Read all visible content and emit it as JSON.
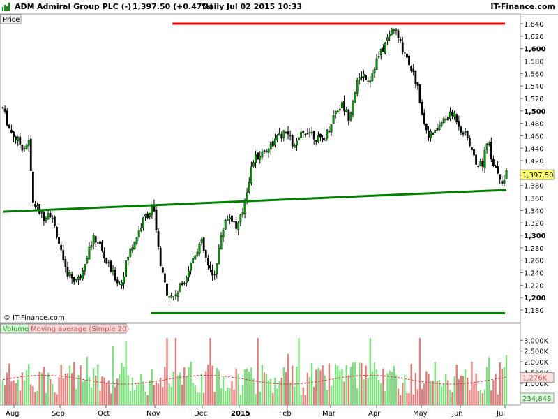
{
  "header": {
    "symbol": "ADM",
    "company": "Admiral Group PLC (-)",
    "last_change": "1,397.50 (+0.47%)",
    "period": "Daily",
    "datetime": "Jul 02 2015 10:33",
    "brand": "IT-Finance.com",
    "price_tab": "Price"
  },
  "watermark": "© IT-Finance.com",
  "colors": {
    "up": "#00a000",
    "down": "#000000",
    "resistance": "#e00000",
    "support": "#008000",
    "volume_up": "#7ee07e",
    "volume_down": "#e07e7e",
    "ma": "#d04040",
    "last_price_bg": "#ffff66"
  },
  "chart_data": [
    {
      "type": "candlestick",
      "title": "ADM - Admiral Group PLC (-)",
      "ylabel": "Price",
      "ylim": [
        1170,
        1650
      ],
      "y_ticks": [
        1180,
        1200,
        1220,
        1240,
        1260,
        1280,
        1300,
        1320,
        1340,
        1360,
        1380,
        1420,
        1440,
        1460,
        1480,
        1500,
        1520,
        1540,
        1560,
        1580,
        1600,
        1620,
        1640
      ],
      "y_tick_labels": [
        "1,180",
        "1,200",
        "1,220",
        "1,240",
        "1,260",
        "1,280",
        "1,300",
        "1,320",
        "1,340",
        "1,360",
        "1,380",
        "1,420",
        "1,440",
        "1,460",
        "1,480",
        "1,500",
        "1,520",
        "1,540",
        "1,560",
        "1,580",
        "1,600",
        "1,620",
        "1,640"
      ],
      "bold_ticks": [
        1200,
        1300,
        1400,
        1500,
        1600
      ],
      "x_labels": [
        "Aug",
        "Sep",
        "Oct",
        "Nov",
        "Dec",
        "2015",
        "Feb",
        "Mar",
        "Apr",
        "May",
        "Jun",
        "Jul"
      ],
      "last_price": 1397.5,
      "last_price_label": "1,397.50",
      "anchors": [
        [
          0,
          1505
        ],
        [
          5,
          1470
        ],
        [
          10,
          1455
        ],
        [
          15,
          1440
        ],
        [
          19,
          1450
        ],
        [
          22,
          1355
        ],
        [
          26,
          1340
        ],
        [
          30,
          1330
        ],
        [
          34,
          1340
        ],
        [
          40,
          1300
        ],
        [
          45,
          1245
        ],
        [
          52,
          1230
        ],
        [
          56,
          1230
        ],
        [
          60,
          1260
        ],
        [
          66,
          1295
        ],
        [
          70,
          1290
        ],
        [
          75,
          1260
        ],
        [
          80,
          1240
        ],
        [
          86,
          1220
        ],
        [
          92,
          1270
        ],
        [
          98,
          1300
        ],
        [
          104,
          1330
        ],
        [
          110,
          1345
        ],
        [
          113,
          1290
        ],
        [
          116,
          1240
        ],
        [
          120,
          1210
        ],
        [
          124,
          1200
        ],
        [
          128,
          1210
        ],
        [
          134,
          1235
        ],
        [
          140,
          1270
        ],
        [
          145,
          1290
        ],
        [
          150,
          1250
        ],
        [
          154,
          1230
        ],
        [
          158,
          1280
        ],
        [
          163,
          1330
        ],
        [
          167,
          1330
        ],
        [
          171,
          1310
        ],
        [
          175,
          1335
        ],
        [
          179,
          1380
        ],
        [
          183,
          1420
        ],
        [
          188,
          1430
        ],
        [
          193,
          1440
        ],
        [
          198,
          1450
        ],
        [
          203,
          1460
        ],
        [
          208,
          1465
        ],
        [
          213,
          1440
        ],
        [
          218,
          1460
        ],
        [
          223,
          1470
        ],
        [
          228,
          1460
        ],
        [
          233,
          1450
        ],
        [
          238,
          1470
        ],
        [
          243,
          1500
        ],
        [
          248,
          1510
        ],
        [
          253,
          1490
        ],
        [
          258,
          1540
        ],
        [
          263,
          1560
        ],
        [
          268,
          1550
        ],
        [
          273,
          1580
        ],
        [
          278,
          1600
        ],
        [
          283,
          1625
        ],
        [
          286,
          1635
        ],
        [
          290,
          1610
        ],
        [
          295,
          1590
        ],
        [
          300,
          1560
        ],
        [
          304,
          1530
        ],
        [
          308,
          1480
        ],
        [
          312,
          1460
        ],
        [
          316,
          1465
        ],
        [
          320,
          1480
        ],
        [
          325,
          1490
        ],
        [
          330,
          1495
        ],
        [
          335,
          1470
        ],
        [
          340,
          1455
        ],
        [
          345,
          1420
        ],
        [
          350,
          1410
        ],
        [
          354,
          1455
        ],
        [
          358,
          1420
        ],
        [
          362,
          1400
        ],
        [
          366,
          1385
        ],
        [
          368,
          1397.5
        ]
      ],
      "candle_count": 234,
      "lines": [
        {
          "name": "resistance",
          "kind": "horizontal",
          "color": "#e00000",
          "y": 1640,
          "x_from_index": 124,
          "x_to_index": 367
        },
        {
          "name": "support-low",
          "kind": "horizontal",
          "color": "#008000",
          "y": 1175,
          "x_from_index": 108,
          "x_to_index": 367
        },
        {
          "name": "trend",
          "kind": "trend",
          "color": "#008000",
          "y_start": 1338,
          "y_end": 1373,
          "x_from_index": 0,
          "x_to_index": 368
        }
      ]
    },
    {
      "type": "bar",
      "title": "",
      "legend": [
        "Volume",
        "Moving average (Simple 20)"
      ],
      "ylim": [
        0,
        3300000
      ],
      "y_ticks": [
        1000000,
        1500000,
        2000000,
        2500000,
        3000000
      ],
      "y_tick_labels": [
        "1,000K",
        "1,500K",
        "2,000K",
        "2,500K",
        "3,000K"
      ],
      "ma_value_label": "1,276K",
      "last_volume_label": "234,848",
      "typical_volume": 1300000,
      "ma_level": 1276000
    }
  ]
}
